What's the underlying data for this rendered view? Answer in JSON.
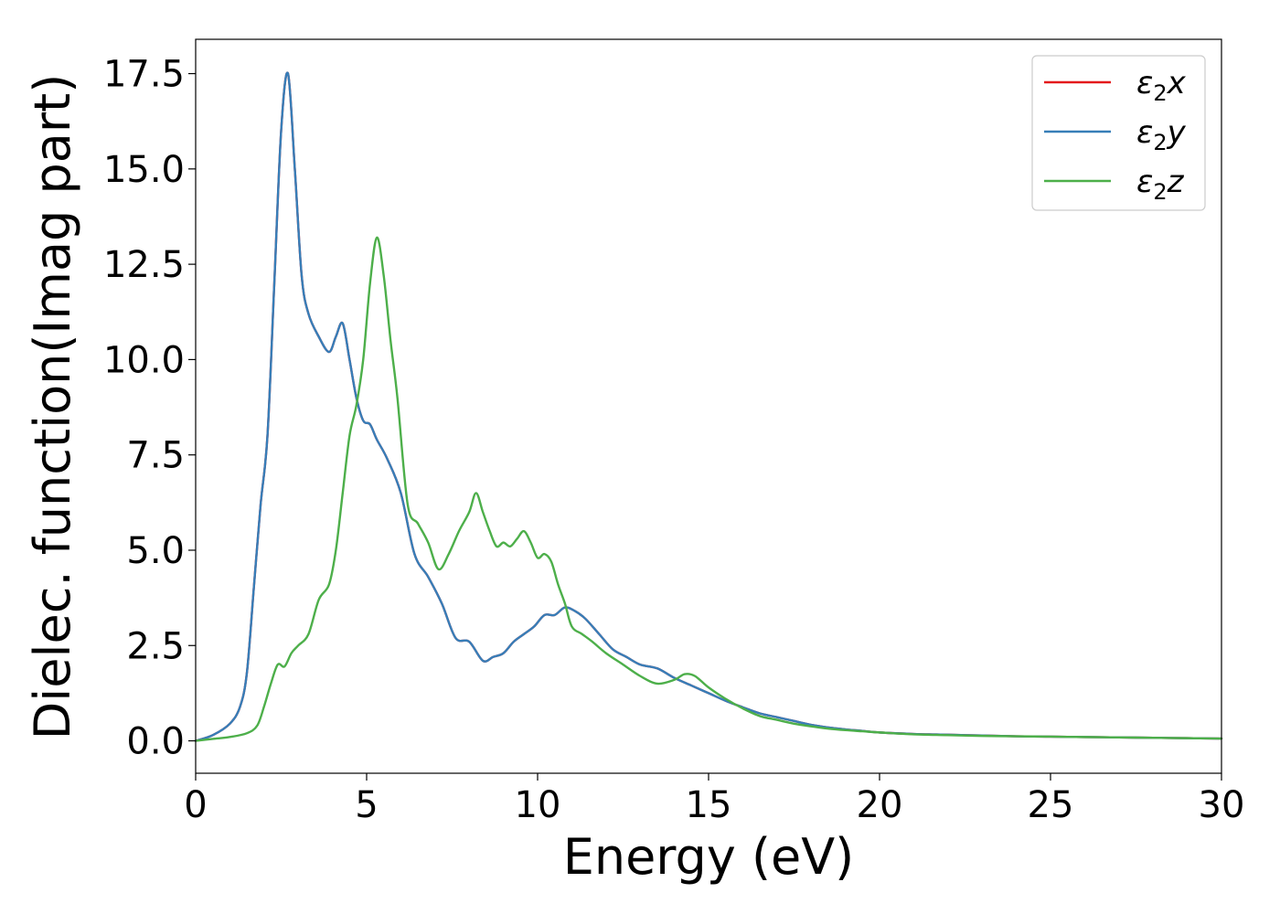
{
  "chart_data": {
    "type": "line",
    "title": "",
    "xlabel": "Energy (eV)",
    "ylabel": "Dielec. function(Imag part)",
    "xlim": [
      0,
      30
    ],
    "ylim": [
      -0.85,
      18.4
    ],
    "xticks": [
      0,
      5,
      10,
      15,
      20,
      25,
      30
    ],
    "xtick_labels": [
      "0",
      "5",
      "10",
      "15",
      "20",
      "25",
      "30"
    ],
    "yticks": [
      0.0,
      2.5,
      5.0,
      7.5,
      10.0,
      12.5,
      15.0,
      17.5
    ],
    "ytick_labels": [
      "0.0",
      "2.5",
      "5.0",
      "7.5",
      "10.0",
      "12.5",
      "15.0",
      "17.5"
    ],
    "grid": false,
    "legend_position": "top-right",
    "legend": [
      {
        "base": "ε",
        "sub": "2",
        "suffix": "x",
        "color": "#e41a1c"
      },
      {
        "base": "ε",
        "sub": "2",
        "suffix": "y",
        "color": "#377eb8"
      },
      {
        "base": "ε",
        "sub": "2",
        "suffix": "z",
        "color": "#4daf4a"
      }
    ],
    "series": [
      {
        "name": "ε2x",
        "color": "#e41a1c",
        "x": [
          0,
          0.5,
          1.0,
          1.3,
          1.5,
          1.7,
          1.9,
          2.1,
          2.3,
          2.5,
          2.7,
          2.9,
          3.1,
          3.3,
          3.6,
          3.9,
          4.1,
          4.3,
          4.5,
          4.7,
          4.9,
          5.1,
          5.3,
          5.6,
          6.0,
          6.4,
          6.8,
          7.2,
          7.6,
          8.0,
          8.4,
          8.7,
          9.0,
          9.3,
          9.6,
          9.9,
          10.2,
          10.5,
          10.8,
          11.1,
          11.4,
          11.8,
          12.2,
          12.6,
          13.0,
          13.5,
          14.0,
          14.5,
          15.0,
          15.5,
          16.0,
          16.5,
          17.0,
          17.5,
          18.0,
          18.5,
          19.0,
          19.5,
          20.0,
          21.0,
          22.0,
          23.0,
          24.0,
          25.0,
          26.0,
          27.0,
          28.0,
          29.0,
          30.0
        ],
        "y": [
          0.0,
          0.15,
          0.45,
          0.9,
          1.8,
          4.0,
          6.2,
          8.0,
          12.0,
          16.0,
          17.5,
          15.0,
          12.2,
          11.2,
          10.6,
          10.2,
          10.6,
          10.95,
          10.0,
          9.0,
          8.4,
          8.3,
          7.9,
          7.4,
          6.5,
          4.9,
          4.3,
          3.6,
          2.7,
          2.6,
          2.1,
          2.2,
          2.3,
          2.6,
          2.8,
          3.0,
          3.3,
          3.3,
          3.5,
          3.4,
          3.2,
          2.8,
          2.4,
          2.2,
          2.0,
          1.9,
          1.65,
          1.45,
          1.25,
          1.05,
          0.88,
          0.72,
          0.62,
          0.52,
          0.42,
          0.35,
          0.3,
          0.26,
          0.22,
          0.18,
          0.16,
          0.14,
          0.12,
          0.11,
          0.1,
          0.09,
          0.08,
          0.07,
          0.06
        ]
      },
      {
        "name": "ε2y",
        "color": "#377eb8",
        "x": [
          0,
          0.5,
          1.0,
          1.3,
          1.5,
          1.7,
          1.9,
          2.1,
          2.3,
          2.5,
          2.7,
          2.9,
          3.1,
          3.3,
          3.6,
          3.9,
          4.1,
          4.3,
          4.5,
          4.7,
          4.9,
          5.1,
          5.3,
          5.6,
          6.0,
          6.4,
          6.8,
          7.2,
          7.6,
          8.0,
          8.4,
          8.7,
          9.0,
          9.3,
          9.6,
          9.9,
          10.2,
          10.5,
          10.8,
          11.1,
          11.4,
          11.8,
          12.2,
          12.6,
          13.0,
          13.5,
          14.0,
          14.5,
          15.0,
          15.5,
          16.0,
          16.5,
          17.0,
          17.5,
          18.0,
          18.5,
          19.0,
          19.5,
          20.0,
          21.0,
          22.0,
          23.0,
          24.0,
          25.0,
          26.0,
          27.0,
          28.0,
          29.0,
          30.0
        ],
        "y": [
          0.0,
          0.15,
          0.45,
          0.9,
          1.8,
          4.0,
          6.2,
          8.0,
          12.0,
          16.0,
          17.5,
          15.0,
          12.2,
          11.2,
          10.6,
          10.2,
          10.6,
          10.95,
          10.0,
          9.0,
          8.4,
          8.3,
          7.9,
          7.4,
          6.5,
          4.9,
          4.3,
          3.6,
          2.7,
          2.6,
          2.1,
          2.2,
          2.3,
          2.6,
          2.8,
          3.0,
          3.3,
          3.3,
          3.5,
          3.4,
          3.2,
          2.8,
          2.4,
          2.2,
          2.0,
          1.9,
          1.65,
          1.45,
          1.25,
          1.05,
          0.88,
          0.72,
          0.62,
          0.52,
          0.42,
          0.35,
          0.3,
          0.26,
          0.22,
          0.18,
          0.16,
          0.14,
          0.12,
          0.11,
          0.1,
          0.09,
          0.08,
          0.07,
          0.06
        ]
      },
      {
        "name": "ε2z",
        "color": "#4daf4a",
        "x": [
          0,
          0.5,
          1.0,
          1.5,
          1.8,
          2.0,
          2.2,
          2.4,
          2.6,
          2.8,
          3.0,
          3.3,
          3.6,
          3.9,
          4.1,
          4.3,
          4.5,
          4.7,
          4.9,
          5.1,
          5.3,
          5.5,
          5.7,
          5.9,
          6.2,
          6.5,
          6.8,
          7.1,
          7.4,
          7.7,
          8.0,
          8.2,
          8.4,
          8.6,
          8.8,
          9.0,
          9.2,
          9.4,
          9.6,
          9.8,
          10.0,
          10.2,
          10.4,
          10.6,
          10.8,
          11.0,
          11.3,
          11.6,
          12.0,
          12.5,
          13.0,
          13.5,
          14.0,
          14.3,
          14.6,
          15.0,
          15.5,
          16.0,
          16.5,
          17.0,
          17.5,
          18.0,
          18.5,
          19.0,
          19.5,
          20.0,
          21.0,
          22.0,
          23.0,
          24.0,
          25.0,
          26.0,
          27.0,
          28.0,
          29.0,
          30.0
        ],
        "y": [
          0.0,
          0.05,
          0.1,
          0.2,
          0.4,
          0.9,
          1.5,
          2.0,
          1.95,
          2.3,
          2.5,
          2.8,
          3.7,
          4.1,
          5.0,
          6.5,
          8.0,
          8.8,
          10.0,
          12.0,
          13.2,
          12.2,
          10.5,
          9.0,
          6.2,
          5.7,
          5.2,
          4.5,
          4.9,
          5.5,
          6.0,
          6.5,
          6.0,
          5.5,
          5.1,
          5.2,
          5.1,
          5.3,
          5.5,
          5.2,
          4.8,
          4.9,
          4.7,
          4.1,
          3.6,
          3.0,
          2.8,
          2.6,
          2.3,
          2.0,
          1.7,
          1.5,
          1.6,
          1.75,
          1.7,
          1.4,
          1.1,
          0.85,
          0.65,
          0.55,
          0.45,
          0.38,
          0.32,
          0.28,
          0.25,
          0.22,
          0.17,
          0.15,
          0.13,
          0.12,
          0.11,
          0.1,
          0.09,
          0.08,
          0.07,
          0.06
        ]
      }
    ]
  }
}
